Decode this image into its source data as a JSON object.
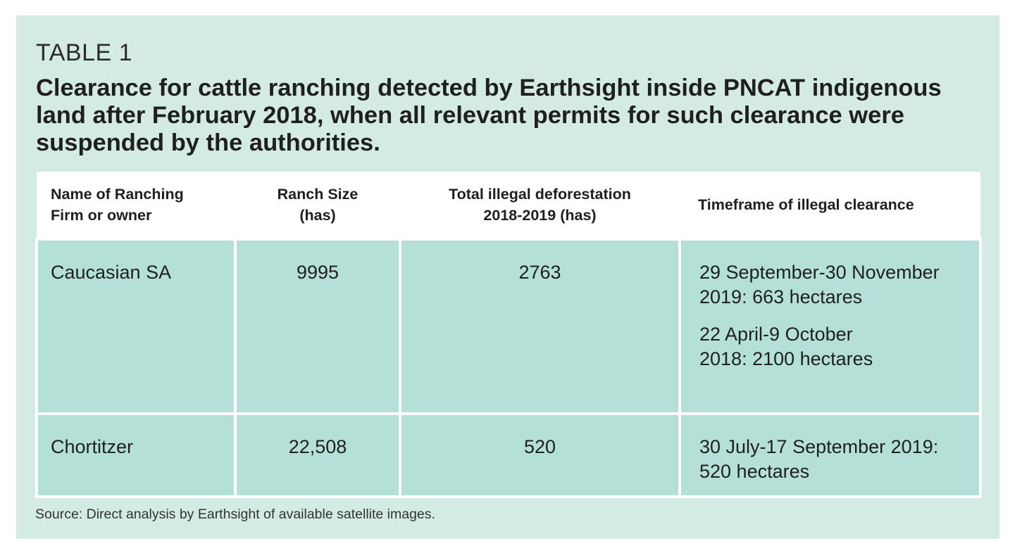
{
  "table_label": "TABLE 1",
  "title": "Clearance for cattle ranching detected by Earthsight inside PNCAT indigenous land after February 2018, when all relevant permits for such clearance were suspended by the authorities.",
  "table": {
    "headers": [
      {
        "line1": "Name of Ranching",
        "line2": "Firm or owner"
      },
      {
        "line1": "Ranch Size",
        "line2": "(has)"
      },
      {
        "line1": "Total illegal deforestation",
        "line2": "2018-2019 (has)"
      },
      {
        "line1": "Timeframe of illegal clearance",
        "line2": ""
      }
    ],
    "rows": [
      {
        "name": "Caucasian SA",
        "ranch_size": "9995",
        "total_deforestation": "2763",
        "timeframe": [
          {
            "line1": "29 September-30 November",
            "line2": "2019: 663 hectares"
          },
          {
            "line1": "22 April-9 October",
            "line2": "2018: 2100 hectares"
          }
        ]
      },
      {
        "name": "Chortitzer",
        "ranch_size": "22,508",
        "total_deforestation": "520",
        "timeframe": [
          {
            "line1": "30 July-17 September 2019:",
            "line2": "520 hectares"
          }
        ]
      }
    ]
  },
  "source": "Source: Direct analysis by Earthsight of available satellite images."
}
